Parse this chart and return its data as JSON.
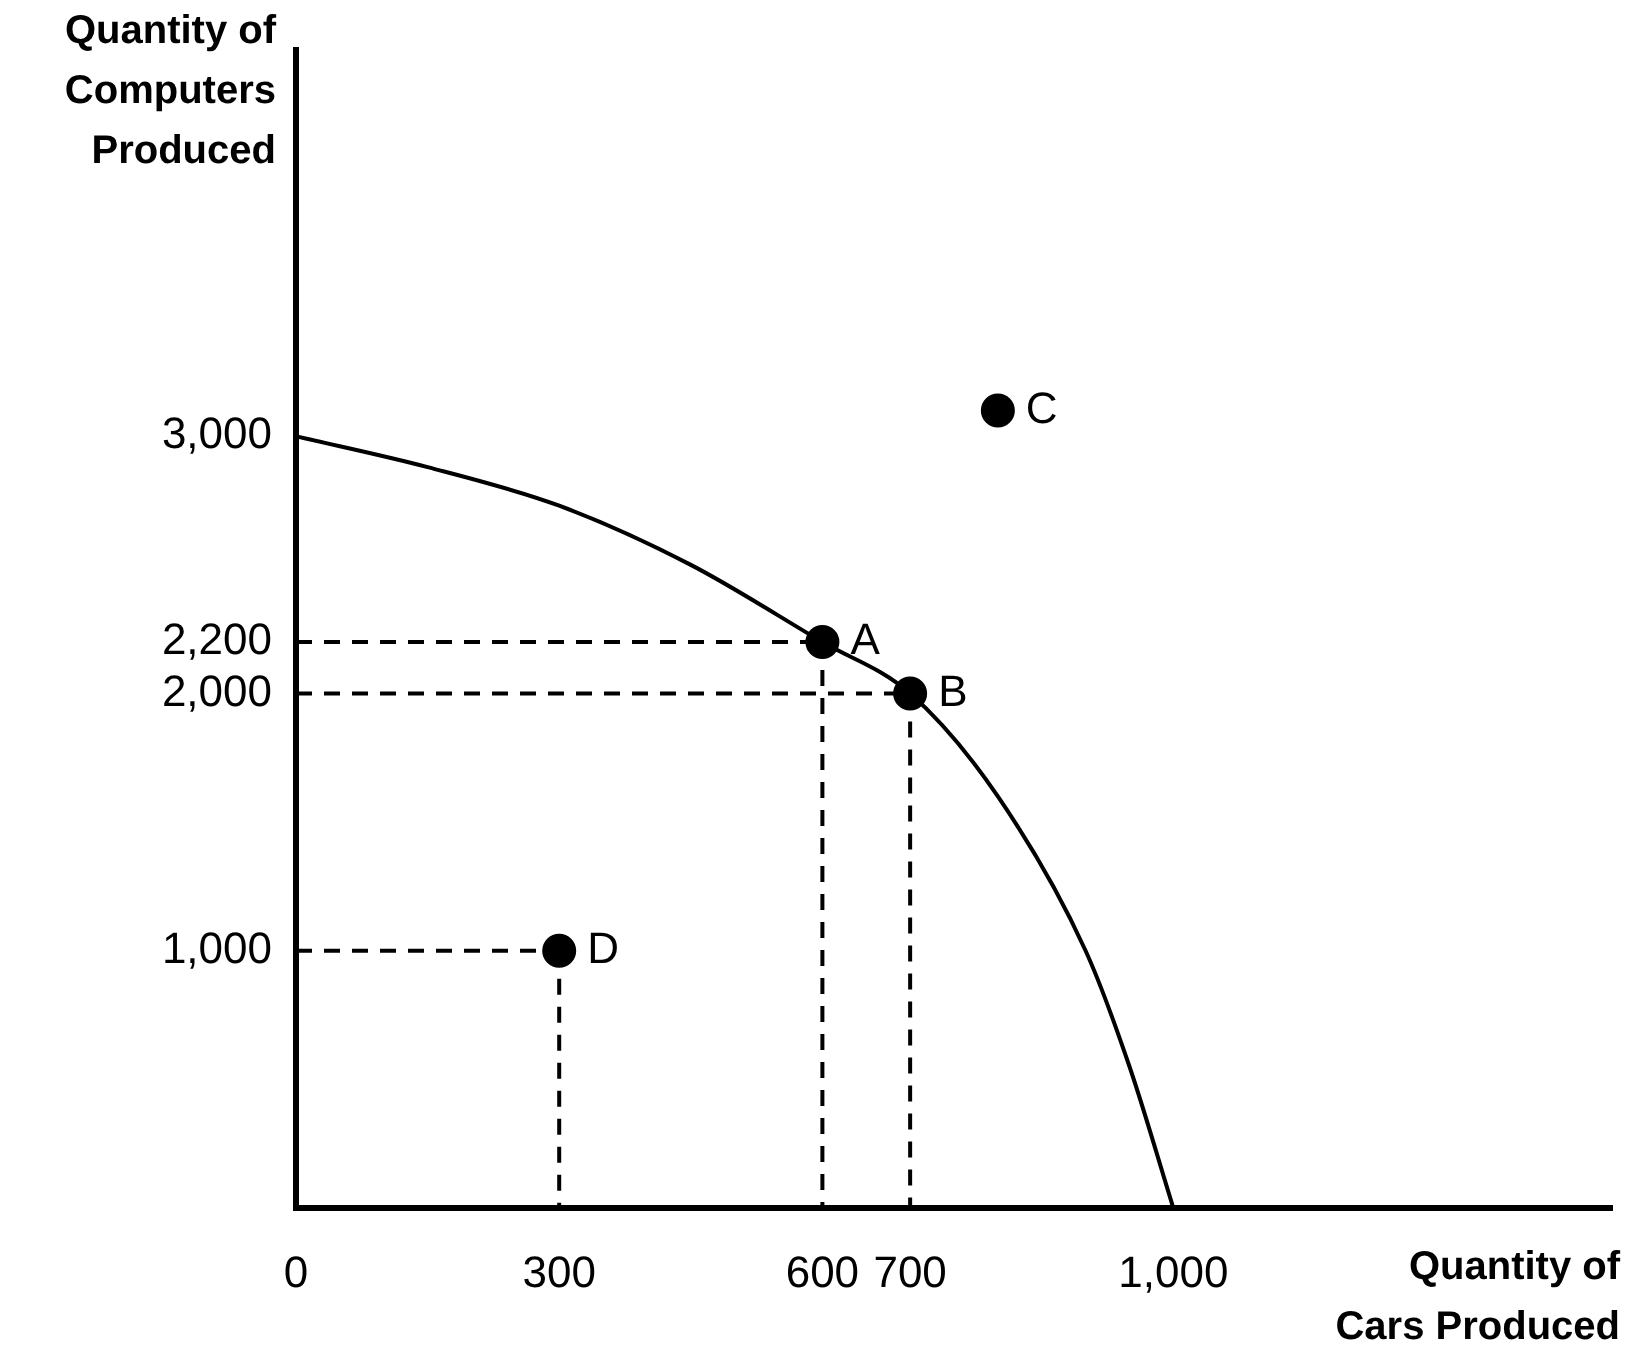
{
  "chart_data": {
    "type": "line",
    "xlabel": "Quantity of\nCars Produced",
    "ylabel": "Quantity of\nComputers\nProduced",
    "xlim": [
      0,
      1500
    ],
    "ylim": [
      0,
      4500
    ],
    "xticks": [
      0,
      300,
      600,
      700,
      {
        "value": 1000,
        "label": "1,000"
      }
    ],
    "yticks": [
      {
        "value": 1000,
        "label": "1,000"
      },
      {
        "value": 2000,
        "label": "2,000"
      },
      {
        "value": 2200,
        "label": "2,200"
      },
      {
        "value": 3000,
        "label": "3,000"
      }
    ],
    "series": [
      {
        "type": "line",
        "color": "#000000",
        "marker": "none",
        "x": [
          0,
          150,
          300,
          450,
          600,
          700,
          800,
          900,
          950,
          1000
        ],
        "values": [
          3000,
          2880,
          2730,
          2500,
          2200,
          2000,
          1600,
          1000,
          550,
          0
        ]
      },
      {
        "type": "scatter",
        "color": "#000000",
        "marker": "circle",
        "x": [
          600,
          700,
          800,
          300
        ],
        "values": [
          2200,
          2000,
          3100,
          1000
        ]
      }
    ],
    "annotations": [
      {
        "text": "A",
        "x": 600,
        "y": 2200
      },
      {
        "text": "B",
        "x": 700,
        "y": 2000
      },
      {
        "text": "C",
        "x": 800,
        "y": 3100
      },
      {
        "text": "D",
        "x": 300,
        "y": 1000
      }
    ],
    "legend": false
  }
}
